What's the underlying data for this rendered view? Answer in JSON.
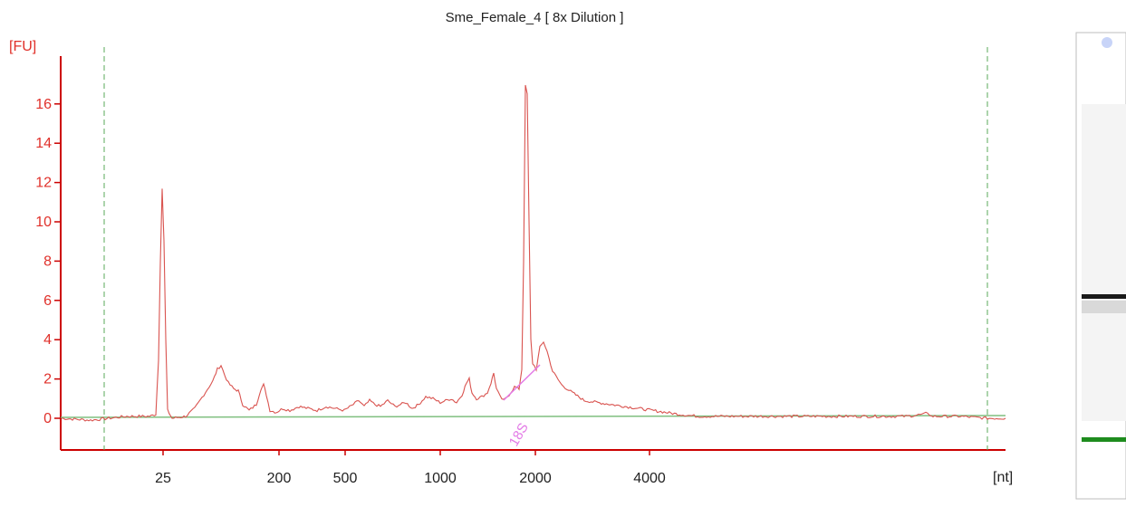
{
  "chart_data": {
    "type": "line",
    "title": "Sme_Female_4  [ 8x Dilution ]",
    "ylabel": "[FU]",
    "xlabel": "[nt]",
    "ylim": [
      -1.5,
      18
    ],
    "y_ticks": [
      0,
      2,
      4,
      6,
      8,
      10,
      12,
      14,
      16
    ],
    "x_tick_labels": [
      "25",
      "200",
      "500",
      "1000",
      "2000",
      "4000"
    ],
    "grid": false,
    "marker_lines_style": "green dashed vertical",
    "colors": {
      "trace": "#d9534f",
      "baseline": "#7fbf7f",
      "axis": "#cc0000",
      "marker": "#5aa85a",
      "annotation": "#e37be6",
      "gel_band": "#1a1a1a",
      "gel_marker": "#1e8c1e"
    },
    "annotations": [
      {
        "label": "18S",
        "near_x": "2000"
      }
    ],
    "series": [
      {
        "x": [
          "25",
          "25",
          "25",
          "200",
          "200",
          "500",
          "1000",
          "1000",
          "2000",
          "2000",
          "2000",
          "4000"
        ],
        "peaks": [
          {
            "x": "25",
            "y": 11.7
          },
          {
            "x": "200",
            "y": 1.7
          },
          {
            "x": "1000",
            "y": 2.0
          },
          {
            "x": "2000",
            "y": 16.9
          },
          {
            "x": "2000",
            "y": 3.9
          }
        ]
      }
    ]
  },
  "gel": {
    "description_bands": [
      "ladder-dot",
      "18S-band",
      "marker-band"
    ]
  }
}
